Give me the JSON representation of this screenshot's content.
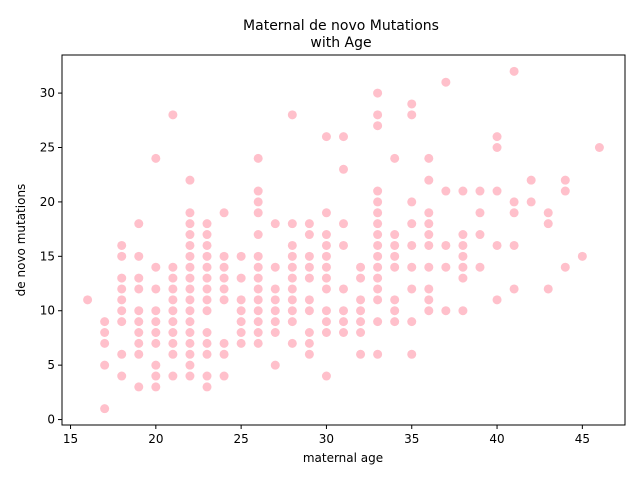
{
  "chart_data": {
    "type": "scatter",
    "title_lines": [
      "Maternal de novo Mutations",
      "with Age"
    ],
    "xlabel": "maternal age",
    "ylabel": "de novo mutations",
    "xlim": [
      14.5,
      47.5
    ],
    "ylim": [
      -0.5,
      33.5
    ],
    "xticks": [
      15,
      20,
      25,
      30,
      35,
      40,
      45
    ],
    "yticks": [
      0,
      5,
      10,
      15,
      20,
      25,
      30
    ],
    "grid": false,
    "point_color": "#ffc0cb",
    "points": [
      [
        16,
        11
      ],
      [
        17,
        1
      ],
      [
        17,
        5
      ],
      [
        17,
        7
      ],
      [
        17,
        8
      ],
      [
        17,
        9
      ],
      [
        18,
        4
      ],
      [
        18,
        6
      ],
      [
        18,
        9
      ],
      [
        18,
        10
      ],
      [
        18,
        11
      ],
      [
        18,
        12
      ],
      [
        18,
        13
      ],
      [
        18,
        15
      ],
      [
        18,
        16
      ],
      [
        19,
        3
      ],
      [
        19,
        6
      ],
      [
        19,
        7
      ],
      [
        19,
        8
      ],
      [
        19,
        9
      ],
      [
        19,
        10
      ],
      [
        19,
        12
      ],
      [
        19,
        13
      ],
      [
        19,
        15
      ],
      [
        19,
        18
      ],
      [
        20,
        3
      ],
      [
        20,
        4
      ],
      [
        20,
        5
      ],
      [
        20,
        7
      ],
      [
        20,
        8
      ],
      [
        20,
        9
      ],
      [
        20,
        10
      ],
      [
        20,
        12
      ],
      [
        20,
        14
      ],
      [
        20,
        24
      ],
      [
        21,
        4
      ],
      [
        21,
        6
      ],
      [
        21,
        7
      ],
      [
        21,
        8
      ],
      [
        21,
        9
      ],
      [
        21,
        10
      ],
      [
        21,
        11
      ],
      [
        21,
        12
      ],
      [
        21,
        13
      ],
      [
        21,
        14
      ],
      [
        21,
        28
      ],
      [
        22,
        4
      ],
      [
        22,
        5
      ],
      [
        22,
        6
      ],
      [
        22,
        7
      ],
      [
        22,
        8
      ],
      [
        22,
        9
      ],
      [
        22,
        10
      ],
      [
        22,
        11
      ],
      [
        22,
        12
      ],
      [
        22,
        13
      ],
      [
        22,
        14
      ],
      [
        22,
        15
      ],
      [
        22,
        16
      ],
      [
        22,
        17
      ],
      [
        22,
        18
      ],
      [
        22,
        19
      ],
      [
        22,
        22
      ],
      [
        23,
        3
      ],
      [
        23,
        4
      ],
      [
        23,
        6
      ],
      [
        23,
        7
      ],
      [
        23,
        8
      ],
      [
        23,
        10
      ],
      [
        23,
        11
      ],
      [
        23,
        12
      ],
      [
        23,
        13
      ],
      [
        23,
        14
      ],
      [
        23,
        15
      ],
      [
        23,
        16
      ],
      [
        23,
        17
      ],
      [
        23,
        18
      ],
      [
        24,
        4
      ],
      [
        24,
        6
      ],
      [
        24,
        7
      ],
      [
        24,
        11
      ],
      [
        24,
        12
      ],
      [
        24,
        13
      ],
      [
        24,
        14
      ],
      [
        24,
        15
      ],
      [
        24,
        19
      ],
      [
        25,
        7
      ],
      [
        25,
        8
      ],
      [
        25,
        9
      ],
      [
        25,
        10
      ],
      [
        25,
        11
      ],
      [
        25,
        13
      ],
      [
        25,
        15
      ],
      [
        26,
        7
      ],
      [
        26,
        8
      ],
      [
        26,
        9
      ],
      [
        26,
        10
      ],
      [
        26,
        11
      ],
      [
        26,
        12
      ],
      [
        26,
        13
      ],
      [
        26,
        14
      ],
      [
        26,
        15
      ],
      [
        26,
        17
      ],
      [
        26,
        19
      ],
      [
        26,
        20
      ],
      [
        26,
        21
      ],
      [
        26,
        24
      ],
      [
        27,
        5
      ],
      [
        27,
        8
      ],
      [
        27,
        9
      ],
      [
        27,
        10
      ],
      [
        27,
        11
      ],
      [
        27,
        12
      ],
      [
        27,
        14
      ],
      [
        27,
        18
      ],
      [
        28,
        7
      ],
      [
        28,
        9
      ],
      [
        28,
        10
      ],
      [
        28,
        11
      ],
      [
        28,
        12
      ],
      [
        28,
        13
      ],
      [
        28,
        14
      ],
      [
        28,
        15
      ],
      [
        28,
        16
      ],
      [
        28,
        18
      ],
      [
        28,
        28
      ],
      [
        29,
        6
      ],
      [
        29,
        7
      ],
      [
        29,
        8
      ],
      [
        29,
        10
      ],
      [
        29,
        11
      ],
      [
        29,
        13
      ],
      [
        29,
        14
      ],
      [
        29,
        15
      ],
      [
        29,
        17
      ],
      [
        29,
        18
      ],
      [
        30,
        4
      ],
      [
        30,
        8
      ],
      [
        30,
        9
      ],
      [
        30,
        10
      ],
      [
        30,
        12
      ],
      [
        30,
        13
      ],
      [
        30,
        14
      ],
      [
        30,
        15
      ],
      [
        30,
        16
      ],
      [
        30,
        17
      ],
      [
        30,
        19
      ],
      [
        30,
        26
      ],
      [
        31,
        8
      ],
      [
        31,
        9
      ],
      [
        31,
        10
      ],
      [
        31,
        12
      ],
      [
        31,
        16
      ],
      [
        31,
        18
      ],
      [
        31,
        23
      ],
      [
        31,
        26
      ],
      [
        32,
        6
      ],
      [
        32,
        8
      ],
      [
        32,
        9
      ],
      [
        32,
        10
      ],
      [
        32,
        11
      ],
      [
        32,
        13
      ],
      [
        32,
        14
      ],
      [
        33,
        6
      ],
      [
        33,
        9
      ],
      [
        33,
        11
      ],
      [
        33,
        12
      ],
      [
        33,
        13
      ],
      [
        33,
        14
      ],
      [
        33,
        15
      ],
      [
        33,
        16
      ],
      [
        33,
        17
      ],
      [
        33,
        18
      ],
      [
        33,
        19
      ],
      [
        33,
        20
      ],
      [
        33,
        21
      ],
      [
        33,
        27
      ],
      [
        33,
        28
      ],
      [
        33,
        30
      ],
      [
        34,
        9
      ],
      [
        34,
        10
      ],
      [
        34,
        11
      ],
      [
        34,
        14
      ],
      [
        34,
        15
      ],
      [
        34,
        16
      ],
      [
        34,
        17
      ],
      [
        34,
        24
      ],
      [
        35,
        6
      ],
      [
        35,
        9
      ],
      [
        35,
        12
      ],
      [
        35,
        14
      ],
      [
        35,
        16
      ],
      [
        35,
        18
      ],
      [
        35,
        20
      ],
      [
        35,
        28
      ],
      [
        35,
        29
      ],
      [
        36,
        10
      ],
      [
        36,
        11
      ],
      [
        36,
        12
      ],
      [
        36,
        14
      ],
      [
        36,
        16
      ],
      [
        36,
        17
      ],
      [
        36,
        18
      ],
      [
        36,
        19
      ],
      [
        36,
        22
      ],
      [
        36,
        24
      ],
      [
        37,
        10
      ],
      [
        37,
        14
      ],
      [
        37,
        16
      ],
      [
        37,
        21
      ],
      [
        37,
        31
      ],
      [
        38,
        10
      ],
      [
        38,
        13
      ],
      [
        38,
        14
      ],
      [
        38,
        15
      ],
      [
        38,
        16
      ],
      [
        38,
        17
      ],
      [
        38,
        21
      ],
      [
        39,
        14
      ],
      [
        39,
        17
      ],
      [
        39,
        19
      ],
      [
        39,
        21
      ],
      [
        40,
        11
      ],
      [
        40,
        16
      ],
      [
        40,
        21
      ],
      [
        40,
        25
      ],
      [
        40,
        26
      ],
      [
        41,
        12
      ],
      [
        41,
        16
      ],
      [
        41,
        19
      ],
      [
        41,
        20
      ],
      [
        41,
        32
      ],
      [
        42,
        20
      ],
      [
        42,
        22
      ],
      [
        43,
        12
      ],
      [
        43,
        18
      ],
      [
        43,
        19
      ],
      [
        44,
        14
      ],
      [
        44,
        21
      ],
      [
        44,
        22
      ],
      [
        45,
        15
      ],
      [
        46,
        25
      ]
    ]
  }
}
